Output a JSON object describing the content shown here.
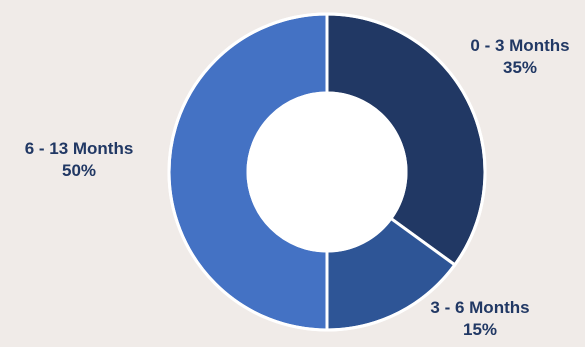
{
  "chart_data": {
    "type": "pie",
    "variant": "donut",
    "start_angle": "12 o'clock",
    "direction": "clockwise",
    "slices": [
      {
        "label": "0 - 3 Months",
        "value": 35,
        "value_label": "35%",
        "color": "#213864"
      },
      {
        "label": "3 - 6 Months",
        "value": 15,
        "value_label": "15%",
        "color": "#2e5596"
      },
      {
        "label": "6 - 13 Months",
        "value": 50,
        "value_label": "50%",
        "color": "#4472c4"
      }
    ],
    "label_color": "#213864",
    "separator_color": "#ffffff",
    "center_color": "#ffffff",
    "background_color": "#f0ebe8",
    "legend": "none",
    "data_labels": "outside"
  }
}
